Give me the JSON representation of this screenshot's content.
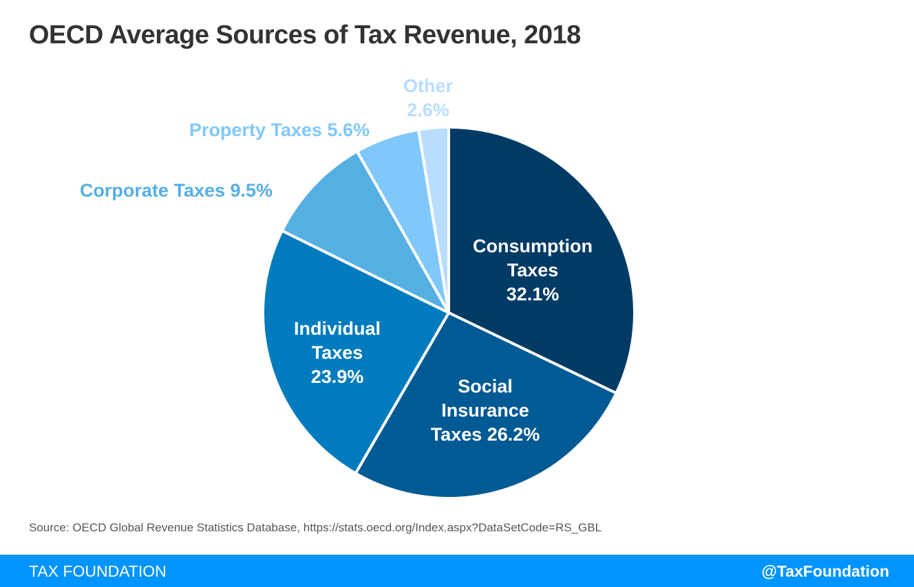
{
  "chart_data": {
    "type": "pie",
    "title": "OECD Average Sources of Tax Revenue, 2018",
    "slices": [
      {
        "label_lines": [
          "Consumption",
          "Taxes",
          "32.1%"
        ],
        "value": 32.1,
        "color": "#003b66",
        "label_color": "#ffffff",
        "label_inside": true
      },
      {
        "label_lines": [
          "Social",
          "Insurance",
          "Taxes 26.2%"
        ],
        "value": 26.2,
        "color": "#005a94",
        "label_color": "#ffffff",
        "label_inside": true
      },
      {
        "label_lines": [
          "Individual",
          "Taxes",
          "23.9%"
        ],
        "value": 23.9,
        "color": "#007bbd",
        "label_color": "#ffffff",
        "label_inside": true
      },
      {
        "label_lines": [
          "Corporate Taxes 9.5%"
        ],
        "value": 9.5,
        "color": "#55afe3",
        "label_color": "#55afe3",
        "label_inside": false
      },
      {
        "label_lines": [
          "Property Taxes 5.6%"
        ],
        "value": 5.6,
        "color": "#80c8fb",
        "label_color": "#80c8fb",
        "label_inside": false
      },
      {
        "label_lines": [
          "Other",
          "2.6%"
        ],
        "value": 2.6,
        "color": "#b8ddff",
        "label_color": "#b8ddff",
        "label_inside": false
      }
    ]
  },
  "source": "Source: OECD Global Revenue Statistics Database, https://stats.oecd.org/Index.aspx?DataSetCode=RS_GBL",
  "footer": {
    "brand": "TAX FOUNDATION",
    "handle": "@TaxFoundation"
  }
}
